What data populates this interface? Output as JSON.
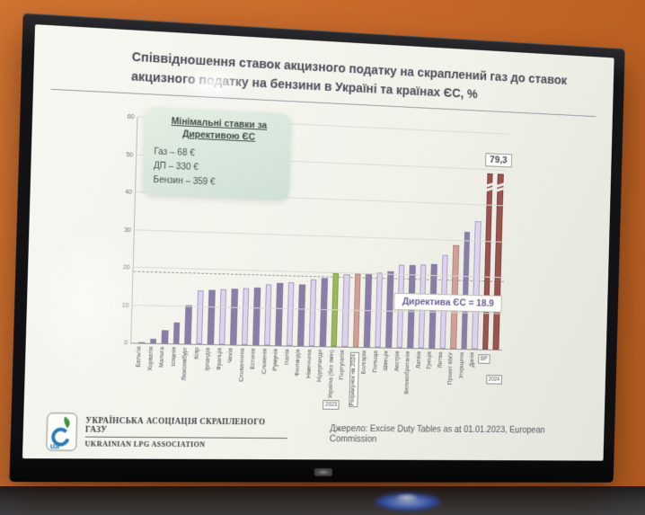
{
  "scene": {
    "wall_color": "#c8682a",
    "tv_bezel_color": "#141416",
    "led_glow_color": "#5f8ef0"
  },
  "slide": {
    "title": "Співвідношення ставок акцизного податку на скраплений газ до ставок акцизного податку на бензини в Україні та країнах ЄС, %",
    "min_rates_box": {
      "heading": "Мінімальні ставки за Директивою ЄС",
      "lines": [
        "Газ – 68 €",
        "ДП – 330 €",
        "Бензин – 359 €"
      ]
    },
    "footer": {
      "org_ua": "УКРАЇНСЬКА АСОЦІАЦІЯ СКРАПЛЕНОГО ГАЗУ",
      "org_en": "UKRAINIAN LPG ASSOCIATION",
      "logo_text": "ua",
      "source": "Джерело: Excise Duty Tables as at 01.01.2023, European Commission"
    }
  },
  "chart_data": {
    "type": "bar",
    "title": "Співвідношення ставок акцизного податку на скраплений газ до ставок акцизного податку на бензини в Україні та країнах ЄС, %",
    "ylabel": "",
    "xlabel": "",
    "ylim": [
      0,
      60
    ],
    "yticks": [
      0,
      10,
      20,
      30,
      40,
      50,
      60
    ],
    "grid": true,
    "note": "Бар-чарт; два останні стовпці (ВР 2024) обрізані зверху на позначці 79,3",
    "annotations": {
      "max_label": "79,3",
      "directive_label": "Директива ЄС = 18.9",
      "directive_value": 18.9
    },
    "colors": {
      "dark": "#8a7ea6",
      "light": "#ded3ec",
      "green": "#9cb85c",
      "salmon": "#d0a096",
      "red": "#9a5450"
    },
    "bars": [
      {
        "label": "Бельгія",
        "value": 0.3,
        "color": "dark"
      },
      {
        "label": "Хорватія",
        "value": 1.2,
        "color": "dark"
      },
      {
        "label": "Мальта",
        "value": 3.6,
        "color": "dark"
      },
      {
        "label": "Іспанія",
        "value": 5.6,
        "color": "dark"
      },
      {
        "label": "Люксембург",
        "value": 10.4,
        "color": "dark"
      },
      {
        "label": "Кіпр",
        "value": 14.3,
        "color": "light"
      },
      {
        "label": "Ірландія",
        "value": 14.5,
        "color": "dark"
      },
      {
        "label": "Франція",
        "value": 14.9,
        "color": "light"
      },
      {
        "label": "Чехія",
        "value": 15.0,
        "color": "dark"
      },
      {
        "label": "Словаччина",
        "value": 15.2,
        "color": "light"
      },
      {
        "label": "Естонія",
        "value": 15.6,
        "color": "dark"
      },
      {
        "label": "Словенія",
        "value": 16.4,
        "color": "light"
      },
      {
        "label": "Румунія",
        "value": 17.0,
        "color": "dark"
      },
      {
        "label": "Італія",
        "value": 17.1,
        "color": "light"
      },
      {
        "label": "Фінляндія",
        "value": 16.7,
        "color": "dark"
      },
      {
        "label": "Німеччина",
        "value": 18.1,
        "color": "light"
      },
      {
        "label": "Нідерланди",
        "value": 18.6,
        "color": "dark"
      },
      {
        "label": "Україна (без змін)",
        "value": 20.0,
        "color": "green",
        "box": "2023"
      },
      {
        "label": "Португалія",
        "value": 19.8,
        "color": "light"
      },
      {
        "label": "",
        "value": 19.9,
        "color": "salmon",
        "box": "Розрахунок на 2024",
        "box_tall": true
      },
      {
        "label": "Болгарія",
        "value": 20.0,
        "color": "dark"
      },
      {
        "label": "Польща",
        "value": 20.5,
        "color": "light"
      },
      {
        "label": "Швеція",
        "value": 21.0,
        "color": "dark"
      },
      {
        "label": "Австрія",
        "value": 22.9,
        "color": "light"
      },
      {
        "label": "Великобританія",
        "value": 22.9,
        "color": "dark"
      },
      {
        "label": "Латвія",
        "value": 23.1,
        "color": "light"
      },
      {
        "label": "Греція",
        "value": 23.4,
        "color": "dark"
      },
      {
        "label": "Литва",
        "value": 25.9,
        "color": "light"
      },
      {
        "label": "Проект КМУ",
        "value": 28.7,
        "color": "salmon"
      },
      {
        "label": "Угорщина",
        "value": 32.4,
        "color": "dark"
      },
      {
        "label": "Данія",
        "value": 35.6,
        "color": "light"
      },
      {
        "label": "",
        "value": 79.3,
        "color": "red",
        "cut": true,
        "box": "ВР"
      },
      {
        "label": "",
        "value": 79.3,
        "color": "red",
        "cut": true,
        "box": "2024",
        "box_offset": true
      }
    ]
  }
}
